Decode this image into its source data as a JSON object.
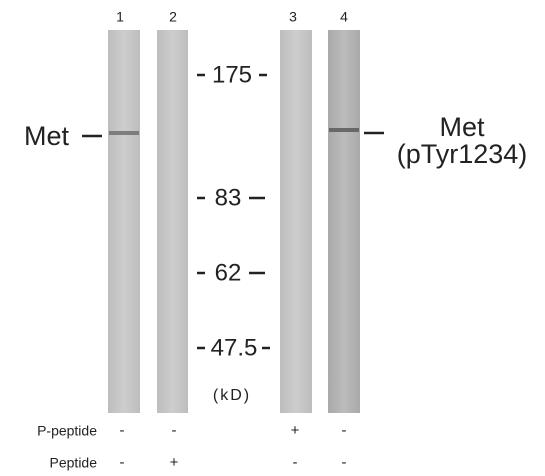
{
  "lanes": [
    {
      "label": "1",
      "p_peptide": "-",
      "peptide": "-"
    },
    {
      "label": "2",
      "p_peptide": "-",
      "peptide": "+"
    },
    {
      "label": "3",
      "p_peptide": "+",
      "peptide": "-"
    },
    {
      "label": "4",
      "p_peptide": "-",
      "peptide": "-"
    }
  ],
  "markers": [
    "175",
    "83",
    "62",
    "47.5"
  ],
  "unit": "(kD)",
  "band_labels": {
    "left": "Met",
    "right": [
      "Met",
      "(pTyr1234)"
    ]
  },
  "rows": [
    "P-peptide",
    "Peptide"
  ]
}
